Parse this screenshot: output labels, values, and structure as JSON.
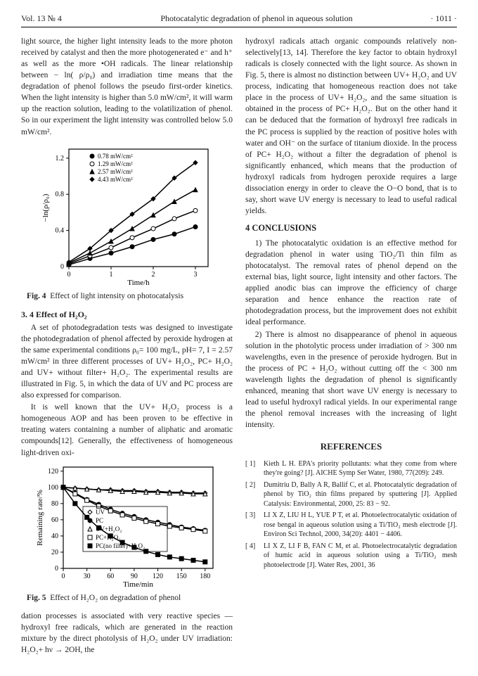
{
  "header": {
    "vol": "Vol. 13  № 4",
    "title": "Photocatalytic degradation of phenol in aqueous solution",
    "page": "· 1011 ·"
  },
  "col1": {
    "p1": "light source, the higher light intensity leads to the more photon received by catalyst and then the more photogenerated e⁻ and h⁺ as well as the more •OH radicals. The linear relationship between − ln( ρ/ρ₀) and irradiation time means that the degradation of phenol follows the pseudo first-order kinetics. When the light intensity is higher than 5.0 mW/cm², it will warm up the reaction solution, leading to the volatilization of phenol. So in our experiment the light intensity was controlled below 5.0 mW/cm².",
    "fig4_caption": "Effect of light intensity on photocatalysis",
    "sec34_title": "3. 4  Effect of H₂O₂",
    "p2": "A set of photodegradation tests was designed to investigate the photodegradation of phenol affected by peroxide hydrogen at the same experimental conditions ρ₀= 100 mg/L, pH= 7, I = 2.57 mW/cm² in three different processes of UV+ H₂O₂, PC+ H₂O₂ and UV+ without filter+ H₂O₂. The experimental results are illustrated in Fig. 5, in which the data of UV and PC process are also expressed for comparison.",
    "p3": "It is well known that the UV+ H₂O₂ process is a homogeneous AOP and has been proven to be effective in treating waters containing a number of aliphatic and aromatic compounds[12]. Generally, the effectiveness of homogeneous light-driven oxi-",
    "fig5_caption": "Effect of H₂O₂ on degradation of phenol",
    "p4": "dation processes is associated with very reactive species —hydroxyl free radicals, which are generated in the reaction mixture by the direct photolysis of H₂O₂ under UV irradiation: H₂O₂+ hν → 2OH, the"
  },
  "col2": {
    "p1": "hydroxyl radicals attach organic compounds relatively non-selectively[13, 14]. Therefore the key factor to obtain hydroxyl radicals is closely connected with the light source. As shown in Fig. 5, there is almost no distinction between UV+ H₂O₂ and UV process, indicating that homogeneous reaction does not take place in the process of UV+ H₂O₂, and the same situation is obtained in the process of PC+ H₂O₂. But on the other hand it can be deduced that the formation of hydroxyl free radicals in the PC process is supplied by the reaction of positive holes with water and OH⁻ on the surface of titanium dioxide. In the process of PC+ H₂O₂ without a filter the degradation of phenol is significantly enhanced, which means that the production of hydroxyl radicals from hydrogen peroxide requires a large dissociation energy in order to cleave the O−O bond, that is to say, short wave UV energy is necessary to lead to useful radical yields.",
    "sec4_title": "4  CONCLUSIONS",
    "p2": "1) The photocatalytic oxidation is an effective method for degradation phenol in water using TiO₂/Ti thin film as photocatalyst. The removal rates of phenol depend on the external bias, light source, light intensity and other factors. The applied anodic bias can improve the efficiency of charge separation and hence enhance the reaction rate of photodegradation process, but the improvement does not exhibit ideal performance.",
    "p3": "2) There is almost no disappearance of phenol in aqueous solution in the photolytic process under irradiation of > 300 nm wavelengths, even in the presence of peroxide hydrogen. But in the process of PC + H₂O₂ without cutting off the < 300 nm wavelength lights the degradation of phenol is significantly enhanced, meaning that short wave UV energy is necessary to lead to useful hydroxyl radical yields. In our experimental range the phenol removal increases with the increasing of light intensity.",
    "refs_title": "REFERENCES"
  },
  "refs": [
    {
      "n": "[ 1]",
      "t": "Kieth L H. EPA's priority pollutants: what they come from where they're going? [J]. AICHE Symp Ser Water, 1980, 77(209): 249."
    },
    {
      "n": "[ 2]",
      "t": "Dumitriu D, Bally A R, Ballif C, et al. Photocatalytic degradation of phenol by TiO₂ thin films prepared by sputtering [J]. Applied Catalysis: Environmental, 2000, 25: 83 − 92."
    },
    {
      "n": "[ 3]",
      "t": "LI X Z, LIU H L, YUE P T, et al. Photoelectrocatalytic oxidation of rose bengal in aqueous solution using a Ti/TiO₂ mesh electrode [J]. Environ Sci Technol, 2000, 34(20): 4401 − 4406."
    },
    {
      "n": "[ 4]",
      "t": "LI X Z, LI F B, FAN C M, et al. Photoelectrocatalytic degradation of humic acid in aqueous solution using a Ti/TiO₂ mesh photoelectrode [J]. Water Res, 2001, 36"
    }
  ],
  "chart1": {
    "type": "line-scatter",
    "xlabel": "Time/h",
    "ylabel": "−ln(ρ/ρ₀)",
    "xlim": [
      0,
      3.3
    ],
    "ylim": [
      0,
      1.3
    ],
    "xticks": [
      0,
      1,
      2,
      3
    ],
    "yticks": [
      0,
      0.4,
      0.8,
      1.2
    ],
    "legend": [
      "0.78 mW/cm²",
      "1.29 mW/cm²",
      "2.57 mW/cm²",
      "4.43 mW/cm²"
    ],
    "markers": [
      "circle-filled",
      "circle-open",
      "triangle-filled",
      "diamond-filled"
    ],
    "series": [
      {
        "x": [
          0,
          0.5,
          1,
          1.5,
          2,
          2.5,
          3
        ],
        "y": [
          0.02,
          0.09,
          0.15,
          0.22,
          0.3,
          0.36,
          0.44
        ]
      },
      {
        "x": [
          0,
          0.5,
          1,
          1.5,
          2,
          2.5,
          3
        ],
        "y": [
          0.03,
          0.12,
          0.21,
          0.32,
          0.42,
          0.53,
          0.62
        ]
      },
      {
        "x": [
          0,
          0.5,
          1,
          1.5,
          2,
          2.5,
          3
        ],
        "y": [
          0.04,
          0.15,
          0.28,
          0.42,
          0.57,
          0.72,
          0.85
        ]
      },
      {
        "x": [
          0,
          0.5,
          1,
          1.5,
          2,
          2.5,
          3
        ],
        "y": [
          0.05,
          0.2,
          0.4,
          0.58,
          0.75,
          0.98,
          1.15
        ]
      }
    ],
    "line_color": "#000",
    "bg": "#fff",
    "axis_color": "#000",
    "font_size": 10
  },
  "chart2": {
    "type": "line-scatter",
    "xlabel": "Time/min",
    "ylabel": "Remaining rate/%",
    "xlim": [
      0,
      190
    ],
    "ylim": [
      0,
      125
    ],
    "xticks": [
      0,
      30,
      60,
      90,
      120,
      150,
      180
    ],
    "yticks": [
      0,
      20,
      40,
      60,
      80,
      100,
      120
    ],
    "legend": [
      "UV",
      "PC",
      "UV+H₂O₂",
      "PC+H₂O₂",
      "PC(no filter)+H₂O₂"
    ],
    "markers": [
      "diamond-open",
      "circle-filled",
      "triangle-open",
      "square-open",
      "square-filled"
    ],
    "series": [
      {
        "x": [
          0,
          15,
          30,
          45,
          60,
          75,
          90,
          105,
          120,
          135,
          150,
          165,
          180
        ],
        "y": [
          100,
          99,
          98,
          97,
          97,
          96,
          96,
          95,
          95,
          94,
          94,
          93,
          93
        ]
      },
      {
        "x": [
          0,
          15,
          30,
          45,
          60,
          75,
          90,
          105,
          120,
          135,
          150,
          165,
          180
        ],
        "y": [
          100,
          93,
          85,
          79,
          73,
          68,
          64,
          60,
          57,
          54,
          51,
          49,
          47
        ]
      },
      {
        "x": [
          0,
          15,
          30,
          45,
          60,
          75,
          90,
          105,
          120,
          135,
          150,
          165,
          180
        ],
        "y": [
          100,
          99,
          98,
          97,
          96,
          95,
          95,
          94,
          94,
          93,
          93,
          92,
          92
        ]
      },
      {
        "x": [
          0,
          15,
          30,
          45,
          60,
          75,
          90,
          105,
          120,
          135,
          150,
          165,
          180
        ],
        "y": [
          100,
          92,
          84,
          77,
          71,
          66,
          62,
          58,
          55,
          52,
          50,
          48,
          46
        ]
      },
      {
        "x": [
          0,
          15,
          30,
          45,
          60,
          75,
          90,
          105,
          120,
          135,
          150,
          165,
          180
        ],
        "y": [
          100,
          80,
          63,
          50,
          40,
          32,
          26,
          21,
          17,
          14,
          12,
          10,
          8
        ]
      }
    ],
    "line_color": "#000",
    "bg": "#fff",
    "axis_color": "#000",
    "font_size": 10
  }
}
